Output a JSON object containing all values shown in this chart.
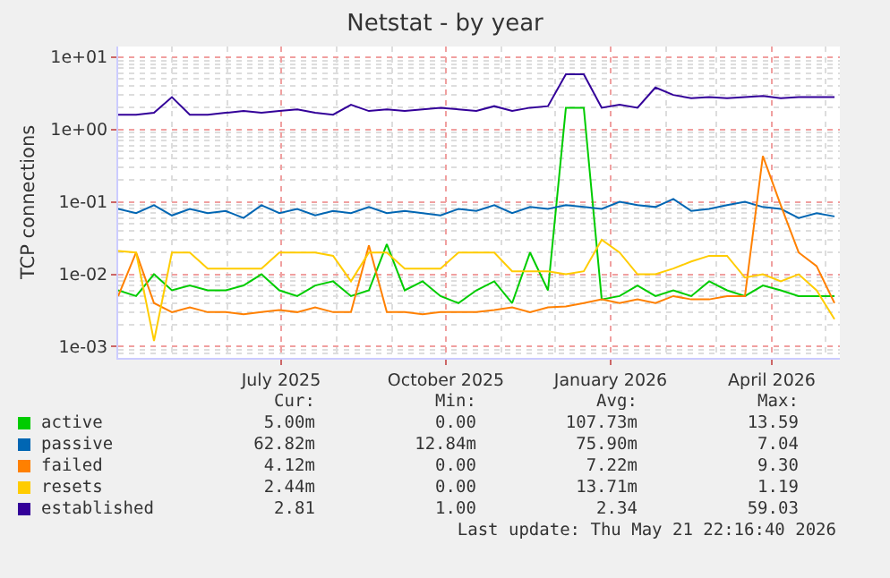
{
  "chart_data": {
    "type": "line",
    "title": "Netstat - by year",
    "ylabel": "TCP connections",
    "x": [
      "2025-04-01",
      "2025-04-11",
      "2025-04-21",
      "2025-05-01",
      "2025-05-11",
      "2025-05-21",
      "2025-05-31",
      "2025-06-10",
      "2025-06-20",
      "2025-06-30",
      "2025-07-10",
      "2025-07-20",
      "2025-07-30",
      "2025-08-09",
      "2025-08-19",
      "2025-08-29",
      "2025-09-08",
      "2025-09-18",
      "2025-09-28",
      "2025-10-08",
      "2025-10-18",
      "2025-10-28",
      "2025-11-07",
      "2025-11-17",
      "2025-11-27",
      "2025-12-07",
      "2025-12-17",
      "2025-12-27",
      "2026-01-06",
      "2026-01-16",
      "2026-01-26",
      "2026-02-05",
      "2026-02-15",
      "2026-02-25",
      "2026-03-07",
      "2026-03-17",
      "2026-03-27",
      "2026-04-06",
      "2026-04-16",
      "2026-04-26",
      "2026-05-06"
    ],
    "series": [
      {
        "name": "active",
        "color": "#00cc00",
        "values": [
          0.006,
          0.005,
          0.01,
          0.006,
          0.007,
          0.006,
          0.006,
          0.007,
          0.01,
          0.006,
          0.005,
          0.007,
          0.008,
          0.005,
          0.006,
          0.026,
          0.006,
          0.008,
          0.005,
          0.004,
          0.006,
          0.008,
          0.004,
          0.02,
          0.006,
          2.0,
          2.0,
          0.0045,
          0.005,
          0.007,
          0.005,
          0.006,
          0.005,
          0.008,
          0.006,
          0.005,
          0.007,
          0.006,
          0.005,
          0.005,
          0.005
        ]
      },
      {
        "name": "passive",
        "color": "#0066b3",
        "values": [
          0.08,
          0.07,
          0.09,
          0.065,
          0.08,
          0.07,
          0.075,
          0.06,
          0.09,
          0.07,
          0.08,
          0.065,
          0.075,
          0.07,
          0.085,
          0.07,
          0.075,
          0.07,
          0.065,
          0.08,
          0.075,
          0.09,
          0.07,
          0.085,
          0.08,
          0.09,
          0.085,
          0.08,
          0.1,
          0.09,
          0.085,
          0.11,
          0.075,
          0.08,
          0.09,
          0.1,
          0.085,
          0.08,
          0.06,
          0.07,
          0.063
        ]
      },
      {
        "name": "failed",
        "color": "#ff8000",
        "values": [
          0.005,
          0.02,
          0.004,
          0.003,
          0.0035,
          0.003,
          0.003,
          0.0028,
          0.003,
          0.0032,
          0.003,
          0.0035,
          0.003,
          0.003,
          0.025,
          0.003,
          0.003,
          0.0028,
          0.003,
          0.003,
          0.003,
          0.0032,
          0.0035,
          0.003,
          0.0035,
          0.0036,
          0.004,
          0.0045,
          0.004,
          0.0045,
          0.004,
          0.005,
          0.0045,
          0.0045,
          0.005,
          0.005,
          0.43,
          0.09,
          0.02,
          0.013,
          0.004
        ]
      },
      {
        "name": "resets",
        "color": "#ffcc00",
        "values": [
          0.021,
          0.02,
          0.0012,
          0.02,
          0.02,
          0.012,
          0.012,
          0.012,
          0.012,
          0.02,
          0.02,
          0.02,
          0.018,
          0.008,
          0.02,
          0.02,
          0.012,
          0.012,
          0.012,
          0.02,
          0.02,
          0.02,
          0.011,
          0.011,
          0.011,
          0.01,
          0.011,
          0.03,
          0.02,
          0.01,
          0.01,
          0.012,
          0.015,
          0.018,
          0.018,
          0.009,
          0.01,
          0.008,
          0.01,
          0.006,
          0.0024
        ]
      },
      {
        "name": "established",
        "color": "#330099",
        "values": [
          1.6,
          1.6,
          1.7,
          2.8,
          1.6,
          1.6,
          1.7,
          1.8,
          1.7,
          1.8,
          1.9,
          1.7,
          1.6,
          2.2,
          1.8,
          1.9,
          1.8,
          1.9,
          2.0,
          1.9,
          1.8,
          2.1,
          1.8,
          2.0,
          2.1,
          5.8,
          5.8,
          2.0,
          2.2,
          2.0,
          3.8,
          3.0,
          2.7,
          2.8,
          2.7,
          2.8,
          2.9,
          2.7,
          2.8,
          2.8,
          2.8
        ]
      }
    ],
    "log": "y",
    "grid": true,
    "legend": "bottom",
    "xlim": [
      "2025-04-01",
      "2026-05-09"
    ],
    "xticks": [
      {
        "value": "2025-07-01",
        "label": "July 2025"
      },
      {
        "value": "2025-10-01",
        "label": "October 2025"
      },
      {
        "value": "2026-01-01",
        "label": "January 2026"
      },
      {
        "value": "2026-04-01",
        "label": "April 2026"
      }
    ],
    "ylim": [
      0.0007,
      14
    ],
    "yticks": [
      {
        "value": 0.001,
        "label": "1e-03"
      },
      {
        "value": 0.01,
        "label": "1e-02"
      },
      {
        "value": 0.1,
        "label": "1e-01"
      },
      {
        "value": 1,
        "label": "1e+00"
      },
      {
        "value": 10,
        "label": "1e+01"
      }
    ],
    "annotations": [
      "Cur:",
      "Min:",
      "Avg:",
      "Max:",
      "5.00m",
      "0.00",
      "107.73m",
      "13.59",
      "62.82m",
      "12.84m",
      "75.90m",
      "7.04",
      "4.12m",
      "0.00",
      "7.22m",
      "9.30",
      "2.44m",
      "0.00",
      "13.71m",
      "1.19",
      "2.81",
      "1.00",
      "2.34",
      "59.03",
      "Last update: Thu May 21 22:16:40 2026"
    ]
  }
}
